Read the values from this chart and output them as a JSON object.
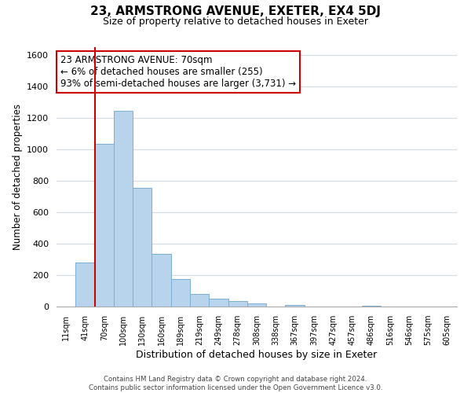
{
  "title": "23, ARMSTRONG AVENUE, EXETER, EX4 5DJ",
  "subtitle": "Size of property relative to detached houses in Exeter",
  "xlabel": "Distribution of detached houses by size in Exeter",
  "ylabel": "Number of detached properties",
  "bar_labels": [
    "11sqm",
    "41sqm",
    "70sqm",
    "100sqm",
    "130sqm",
    "160sqm",
    "189sqm",
    "219sqm",
    "249sqm",
    "278sqm",
    "308sqm",
    "338sqm",
    "367sqm",
    "397sqm",
    "427sqm",
    "457sqm",
    "486sqm",
    "516sqm",
    "546sqm",
    "575sqm",
    "605sqm"
  ],
  "bar_values": [
    0,
    280,
    1035,
    1245,
    755,
    335,
    175,
    80,
    50,
    35,
    20,
    0,
    10,
    0,
    0,
    0,
    5,
    0,
    0,
    0,
    0
  ],
  "bar_color": "#b8d4ed",
  "bar_edge_color": "#7aafd4",
  "highlight_index": 2,
  "highlight_line_color": "#cc0000",
  "ylim": [
    0,
    1650
  ],
  "yticks": [
    0,
    200,
    400,
    600,
    800,
    1000,
    1200,
    1400,
    1600
  ],
  "annotation_title": "23 ARMSTRONG AVENUE: 70sqm",
  "annotation_line1": "← 6% of detached houses are smaller (255)",
  "annotation_line2": "93% of semi-detached houses are larger (3,731) →",
  "annotation_box_color": "#ffffff",
  "annotation_box_edge": "#cc0000",
  "footer_line1": "Contains HM Land Registry data © Crown copyright and database right 2024.",
  "footer_line2": "Contains public sector information licensed under the Open Government Licence v3.0.",
  "bg_color": "#ffffff",
  "grid_color": "#d0d8e8"
}
